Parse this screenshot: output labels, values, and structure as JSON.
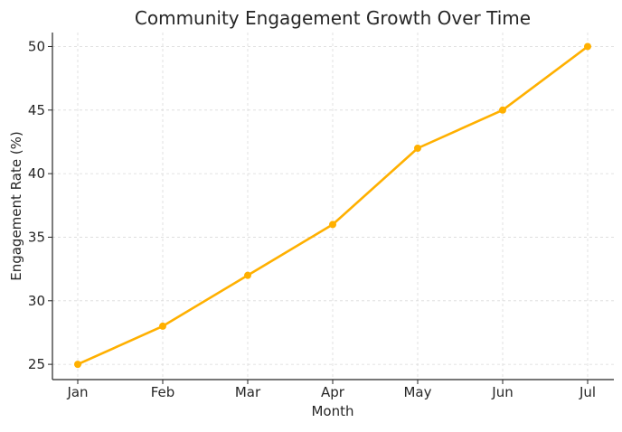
{
  "chart_data": {
    "type": "line",
    "title": "Community Engagement Growth Over Time",
    "xlabel": "Month",
    "ylabel": "Engagement Rate (%)",
    "categories": [
      "Jan",
      "Feb",
      "Mar",
      "Apr",
      "May",
      "Jun",
      "Jul"
    ],
    "series": [
      {
        "values": [
          25,
          28,
          32,
          36,
          42,
          45,
          50
        ],
        "color": "#FFB000",
        "marker": "circle"
      }
    ],
    "yticks": [
      25,
      30,
      35,
      40,
      45,
      50
    ],
    "ylim": [
      23.8,
      51.1
    ],
    "grid": true,
    "legend": "none"
  }
}
